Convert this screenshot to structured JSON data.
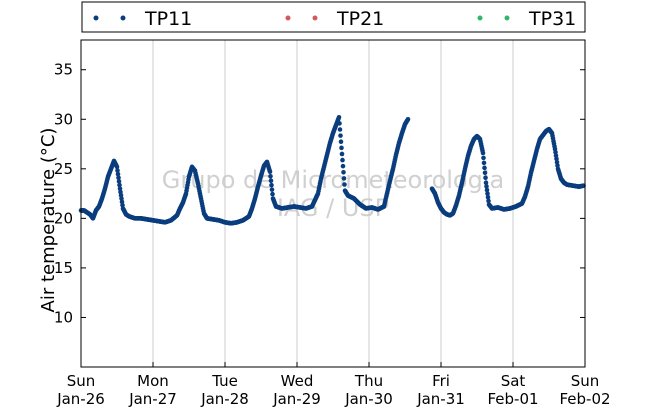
{
  "chart_data": {
    "type": "scatter",
    "ylabel": "Air temperature (°C)",
    "xlabel": "",
    "ylim": [
      5,
      38
    ],
    "yticks": [
      10,
      15,
      20,
      25,
      30,
      35
    ],
    "xlim": [
      "2014-01-26",
      "2014-02-02"
    ],
    "xticks": [
      {
        "date": "2014-01-26",
        "line1": "Sun",
        "line2": "Jan-26"
      },
      {
        "date": "2014-01-27",
        "line1": "Mon",
        "line2": "Jan-27"
      },
      {
        "date": "2014-01-28",
        "line1": "Tue",
        "line2": "Jan-28"
      },
      {
        "date": "2014-01-29",
        "line1": "Wed",
        "line2": "Jan-29"
      },
      {
        "date": "2014-01-30",
        "line1": "Thu",
        "line2": "Jan-30"
      },
      {
        "date": "2014-01-31",
        "line1": "Fri",
        "line2": "Jan-31"
      },
      {
        "date": "2014-02-01",
        "line1": "Sat",
        "line2": "Feb-01"
      },
      {
        "date": "2014-02-02",
        "line1": "Sun",
        "line2": "Feb-02"
      }
    ],
    "grid": "vertical",
    "legend_position": "top",
    "watermark": [
      "Grupo de Micrometeorologia",
      "IAG / USP"
    ],
    "series": [
      {
        "name": "TP11",
        "color": "#0a3d7e",
        "points": [
          [
            "2014-01-26 00:00",
            20.8
          ],
          [
            "2014-01-26 01:00",
            20.8
          ],
          [
            "2014-01-26 02:00",
            20.6
          ],
          [
            "2014-01-26 03:00",
            20.4
          ],
          [
            "2014-01-26 04:00",
            20.0
          ],
          [
            "2014-01-26 05:00",
            20.8
          ],
          [
            "2014-01-26 06:00",
            21.2
          ],
          [
            "2014-01-26 07:00",
            22.0
          ],
          [
            "2014-01-26 08:00",
            23.0
          ],
          [
            "2014-01-26 09:00",
            24.2
          ],
          [
            "2014-01-26 10:00",
            25.0
          ],
          [
            "2014-01-26 11:00",
            25.8
          ],
          [
            "2014-01-26 12:00",
            25.2
          ],
          [
            "2014-01-26 13:00",
            23.0
          ],
          [
            "2014-01-26 14:00",
            21.0
          ],
          [
            "2014-01-26 15:00",
            20.4
          ],
          [
            "2014-01-26 16:00",
            20.2
          ],
          [
            "2014-01-26 17:00",
            20.1
          ],
          [
            "2014-01-26 18:00",
            20.0
          ],
          [
            "2014-01-26 20:00",
            20.0
          ],
          [
            "2014-01-26 22:00",
            19.9
          ],
          [
            "2014-01-27 00:00",
            19.8
          ],
          [
            "2014-01-27 02:00",
            19.7
          ],
          [
            "2014-01-27 04:00",
            19.6
          ],
          [
            "2014-01-27 06:00",
            19.8
          ],
          [
            "2014-01-27 08:00",
            20.3
          ],
          [
            "2014-01-27 09:00",
            21.0
          ],
          [
            "2014-01-27 10:00",
            21.6
          ],
          [
            "2014-01-27 11:00",
            22.5
          ],
          [
            "2014-01-27 12:00",
            24.2
          ],
          [
            "2014-01-27 13:00",
            25.2
          ],
          [
            "2014-01-27 14:00",
            24.8
          ],
          [
            "2014-01-27 15:00",
            23.5
          ],
          [
            "2014-01-27 16:00",
            22.0
          ],
          [
            "2014-01-27 17:00",
            20.5
          ],
          [
            "2014-01-27 18:00",
            20.0
          ],
          [
            "2014-01-27 20:00",
            19.9
          ],
          [
            "2014-01-27 22:00",
            19.8
          ],
          [
            "2014-01-28 00:00",
            19.6
          ],
          [
            "2014-01-28 02:00",
            19.5
          ],
          [
            "2014-01-28 04:00",
            19.6
          ],
          [
            "2014-01-28 06:00",
            19.8
          ],
          [
            "2014-01-28 08:00",
            20.2
          ],
          [
            "2014-01-28 09:00",
            21.0
          ],
          [
            "2014-01-28 10:00",
            22.0
          ],
          [
            "2014-01-28 11:00",
            23.2
          ],
          [
            "2014-01-28 12:00",
            24.3
          ],
          [
            "2014-01-28 13:00",
            25.3
          ],
          [
            "2014-01-28 14:00",
            25.7
          ],
          [
            "2014-01-28 15:00",
            24.7
          ],
          [
            "2014-01-28 16:00",
            22.0
          ],
          [
            "2014-01-28 17:00",
            21.2
          ],
          [
            "2014-01-28 19:00",
            21.0
          ],
          [
            "2014-01-28 21:00",
            21.1
          ],
          [
            "2014-01-28 23:00",
            21.2
          ],
          [
            "2014-01-29 01:00",
            21.1
          ],
          [
            "2014-01-29 03:00",
            21.0
          ],
          [
            "2014-01-29 05:00",
            21.2
          ],
          [
            "2014-01-29 07:00",
            22.5
          ],
          [
            "2014-01-29 08:00",
            24.0
          ],
          [
            "2014-01-29 09:00",
            25.2
          ],
          [
            "2014-01-29 10:00",
            26.4
          ],
          [
            "2014-01-29 11:00",
            27.6
          ],
          [
            "2014-01-29 12:00",
            28.6
          ],
          [
            "2014-01-29 13:00",
            29.4
          ],
          [
            "2014-01-29 14:00",
            30.2
          ],
          [
            "2014-01-29 15:00",
            26.5
          ],
          [
            "2014-01-29 16:00",
            22.8
          ],
          [
            "2014-01-29 17:00",
            22.3
          ],
          [
            "2014-01-29 19:00",
            22.0
          ],
          [
            "2014-01-29 21:00",
            21.4
          ],
          [
            "2014-01-29 23:00",
            21.0
          ],
          [
            "2014-01-30 01:00",
            21.1
          ],
          [
            "2014-01-30 03:00",
            20.9
          ],
          [
            "2014-01-30 05:00",
            21.2
          ],
          [
            "2014-01-30 06:00",
            22.5
          ],
          [
            "2014-01-30 07:00",
            23.8
          ],
          [
            "2014-01-30 08:00",
            25.0
          ],
          [
            "2014-01-30 09:00",
            26.4
          ],
          [
            "2014-01-30 10:00",
            27.6
          ],
          [
            "2014-01-30 11:00",
            28.6
          ],
          [
            "2014-01-30 12:00",
            29.5
          ],
          [
            "2014-01-30 13:00",
            30.0
          ],
          [
            "2014-01-30 21:00",
            23.0
          ],
          [
            "2014-01-30 22:00",
            22.5
          ],
          [
            "2014-01-30 23:00",
            21.6
          ],
          [
            "2014-01-31 00:00",
            21.0
          ],
          [
            "2014-01-31 01:00",
            20.6
          ],
          [
            "2014-01-31 02:00",
            20.4
          ],
          [
            "2014-01-31 03:00",
            20.3
          ],
          [
            "2014-01-31 04:00",
            20.5
          ],
          [
            "2014-01-31 05:00",
            21.3
          ],
          [
            "2014-01-31 06:00",
            22.3
          ],
          [
            "2014-01-31 07:00",
            23.6
          ],
          [
            "2014-01-31 08:00",
            25.0
          ],
          [
            "2014-01-31 09:00",
            26.3
          ],
          [
            "2014-01-31 10:00",
            27.3
          ],
          [
            "2014-01-31 11:00",
            28.0
          ],
          [
            "2014-01-31 12:00",
            28.3
          ],
          [
            "2014-01-31 13:00",
            28.0
          ],
          [
            "2014-01-31 14:00",
            26.6
          ],
          [
            "2014-01-31 15:00",
            23.6
          ],
          [
            "2014-01-31 16:00",
            21.4
          ],
          [
            "2014-01-31 17:00",
            21.0
          ],
          [
            "2014-01-31 19:00",
            21.1
          ],
          [
            "2014-01-31 21:00",
            20.9
          ],
          [
            "2014-01-31 23:00",
            21.0
          ],
          [
            "2014-02-01 01:00",
            21.2
          ],
          [
            "2014-02-01 03:00",
            21.5
          ],
          [
            "2014-02-01 04:00",
            22.2
          ],
          [
            "2014-02-01 05:00",
            23.2
          ],
          [
            "2014-02-01 06:00",
            24.6
          ],
          [
            "2014-02-01 07:00",
            25.8
          ],
          [
            "2014-02-01 08:00",
            27.0
          ],
          [
            "2014-02-01 09:00",
            28.0
          ],
          [
            "2014-02-01 10:00",
            28.4
          ],
          [
            "2014-02-01 11:00",
            28.8
          ],
          [
            "2014-02-01 12:00",
            29.0
          ],
          [
            "2014-02-01 13:00",
            28.6
          ],
          [
            "2014-02-01 14:00",
            27.0
          ],
          [
            "2014-02-01 15:00",
            25.0
          ],
          [
            "2014-02-01 16:00",
            24.0
          ],
          [
            "2014-02-01 17:00",
            23.6
          ],
          [
            "2014-02-01 18:00",
            23.4
          ],
          [
            "2014-02-01 20:00",
            23.3
          ],
          [
            "2014-02-01 22:00",
            23.2
          ],
          [
            "2014-02-01 23:30",
            23.3
          ]
        ]
      },
      {
        "name": "TP21",
        "color": "#d45a5a",
        "points": []
      },
      {
        "name": "TP31",
        "color": "#2fb86c",
        "points": []
      }
    ]
  }
}
